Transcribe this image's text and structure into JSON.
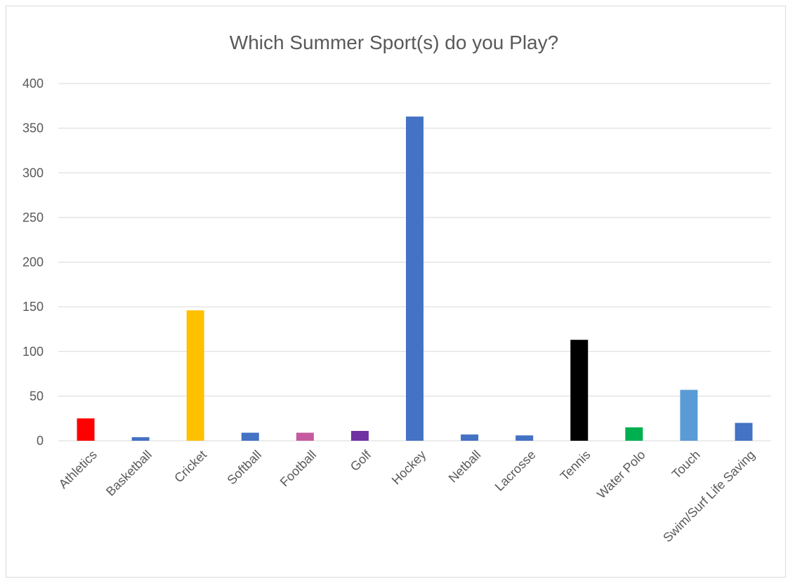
{
  "chart_data": {
    "type": "bar",
    "title": "Which Summer Sport(s) do you Play?",
    "categories": [
      "Athletics",
      "Basketball",
      "Cricket",
      "Softball",
      "Football",
      "Golf",
      "Hockey",
      "Netball",
      "Lacrosse",
      "Tennis",
      "Water Polo",
      "Touch",
      "Swim/Surf Life Saving"
    ],
    "values": [
      25,
      4,
      146,
      9,
      9,
      11,
      363,
      7,
      6,
      113,
      15,
      57,
      20
    ],
    "colors": [
      "#ff0000",
      "#4472c4",
      "#ffc000",
      "#4472c4",
      "#c55a9f",
      "#7030a0",
      "#4472c4",
      "#4472c4",
      "#4472c4",
      "#000000",
      "#00b050",
      "#5b9bd5",
      "#4472c4"
    ],
    "ylim": [
      0,
      400
    ],
    "yticks": [
      0,
      50,
      100,
      150,
      200,
      250,
      300,
      350,
      400
    ],
    "grid": true,
    "xlabel": "",
    "ylabel": ""
  }
}
